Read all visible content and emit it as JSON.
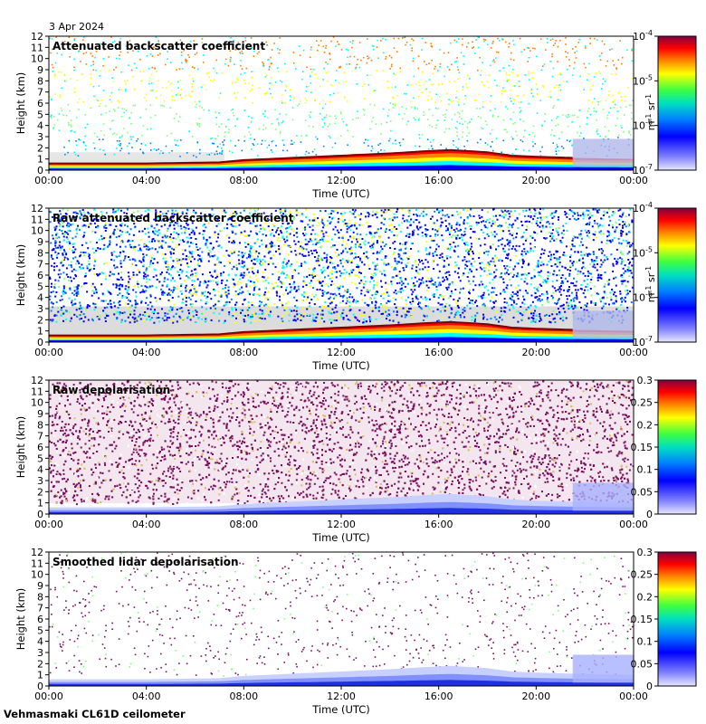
{
  "date": "3 Apr 2024",
  "footer": "Vehmasmaki CL61D ceilometer",
  "chart_data": [
    {
      "type": "heatmap",
      "title": "Attenuated backscatter coefficient",
      "xlabel": "Time (UTC)",
      "ylabel": "Height (km)",
      "x_ticks": [
        "00:00",
        "04:00",
        "08:00",
        "12:00",
        "16:00",
        "20:00",
        "00:00"
      ],
      "y_ticks": [
        "0",
        "1",
        "2",
        "3",
        "4",
        "5",
        "6",
        "7",
        "8",
        "9",
        "10",
        "11",
        "12"
      ],
      "ylim": [
        0,
        12
      ],
      "colorbar": {
        "scale": "log",
        "ticks": [
          "10",
          "10",
          "10",
          "10"
        ],
        "exponents": [
          "-4",
          "-5",
          "-6",
          "-7"
        ],
        "unit_main": "m",
        "unit_exp1": "-1",
        "unit_mid": " sr",
        "unit_exp2": "-1"
      },
      "background": "sparse"
    },
    {
      "type": "heatmap",
      "title": "Raw attenuated backscatter coefficient",
      "xlabel": "Time (UTC)",
      "ylabel": "Height (km)",
      "x_ticks": [
        "00:00",
        "04:00",
        "08:00",
        "12:00",
        "16:00",
        "20:00",
        "00:00"
      ],
      "y_ticks": [
        "0",
        "1",
        "2",
        "3",
        "4",
        "5",
        "6",
        "7",
        "8",
        "9",
        "10",
        "11",
        "12"
      ],
      "ylim": [
        0,
        12
      ],
      "colorbar": {
        "scale": "log",
        "ticks": [
          "10",
          "10",
          "10",
          "10"
        ],
        "exponents": [
          "-4",
          "-5",
          "-6",
          "-7"
        ],
        "unit_main": "m",
        "unit_exp1": "-1",
        "unit_mid": " sr",
        "unit_exp2": "-1"
      },
      "background": "noisy"
    },
    {
      "type": "heatmap",
      "title": "Raw depolarisation",
      "xlabel": "Time (UTC)",
      "ylabel": "Height (km)",
      "x_ticks": [
        "00:00",
        "04:00",
        "08:00",
        "12:00",
        "16:00",
        "20:00",
        "00:00"
      ],
      "y_ticks": [
        "0",
        "1",
        "2",
        "3",
        "4",
        "5",
        "6",
        "7",
        "8",
        "9",
        "10",
        "11",
        "12"
      ],
      "ylim": [
        0,
        12
      ],
      "colorbar": {
        "scale": "linear",
        "ticks": [
          "0.3",
          "0.25",
          "0.2",
          "0.15",
          "0.1",
          "0.05",
          "0"
        ]
      },
      "background": "dense"
    },
    {
      "type": "heatmap",
      "title": "Smoothed lidar depolarisation",
      "xlabel": "Time (UTC)",
      "ylabel": "Height (km)",
      "x_ticks": [
        "00:00",
        "04:00",
        "08:00",
        "12:00",
        "16:00",
        "20:00",
        "00:00"
      ],
      "y_ticks": [
        "0",
        "1",
        "2",
        "3",
        "4",
        "5",
        "6",
        "7",
        "8",
        "9",
        "10",
        "11",
        "12"
      ],
      "ylim": [
        0,
        12
      ],
      "colorbar": {
        "scale": "linear",
        "ticks": [
          "0.3",
          "0.25",
          "0.2",
          "0.15",
          "0.1",
          "0.05",
          "0"
        ]
      },
      "background": "sparse-depol"
    }
  ],
  "boundary_layer": {
    "x_hours": [
      0,
      4,
      7,
      8,
      10,
      12,
      14,
      15.5,
      16.5,
      18,
      19,
      20,
      21.5,
      24
    ],
    "top_km": [
      0.6,
      0.6,
      0.7,
      0.9,
      1.1,
      1.3,
      1.5,
      1.7,
      1.8,
      1.6,
      1.3,
      1.2,
      1.1,
      1.0
    ]
  },
  "colors": {
    "jet": [
      "#00007f",
      "#0000ff",
      "#007fff",
      "#00ffff",
      "#7fff7f",
      "#ffff00",
      "#ff7f00",
      "#ff0000",
      "#7f0000"
    ],
    "low": "#d3d3d3",
    "depol": "#7a1060"
  }
}
